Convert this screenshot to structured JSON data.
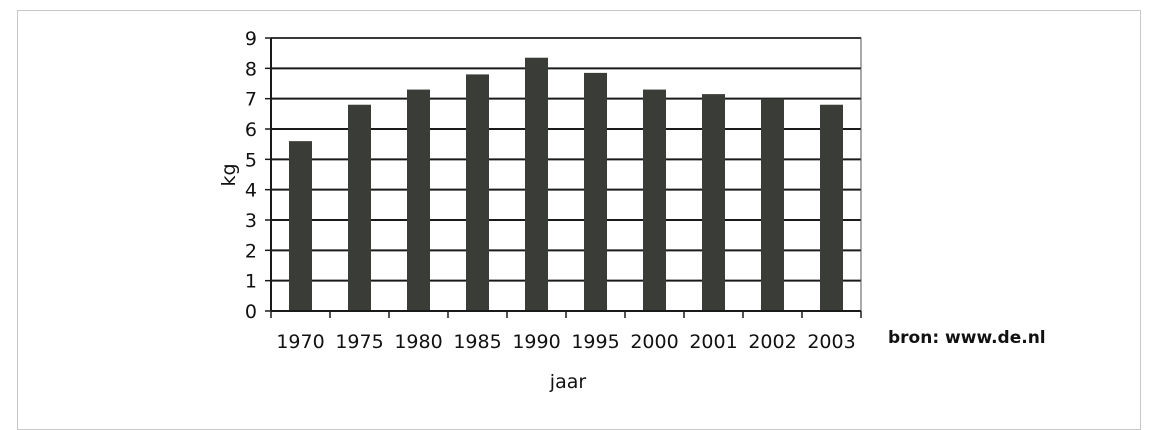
{
  "chart_data": {
    "type": "bar",
    "categories": [
      "1970",
      "1975",
      "1980",
      "1985",
      "1990",
      "1995",
      "2000",
      "2001",
      "2002",
      "2003"
    ],
    "values": [
      5.6,
      6.8,
      7.3,
      7.8,
      8.35,
      7.85,
      7.3,
      7.15,
      7.0,
      6.8
    ],
    "xlabel": "jaar",
    "ylabel": "kg",
    "ylim": [
      0,
      9
    ],
    "yticks": [
      0,
      1,
      2,
      3,
      4,
      5,
      6,
      7,
      8,
      9
    ],
    "grid": true,
    "bar_color": "#3a3d37",
    "source": "bron: www.de.nl"
  }
}
